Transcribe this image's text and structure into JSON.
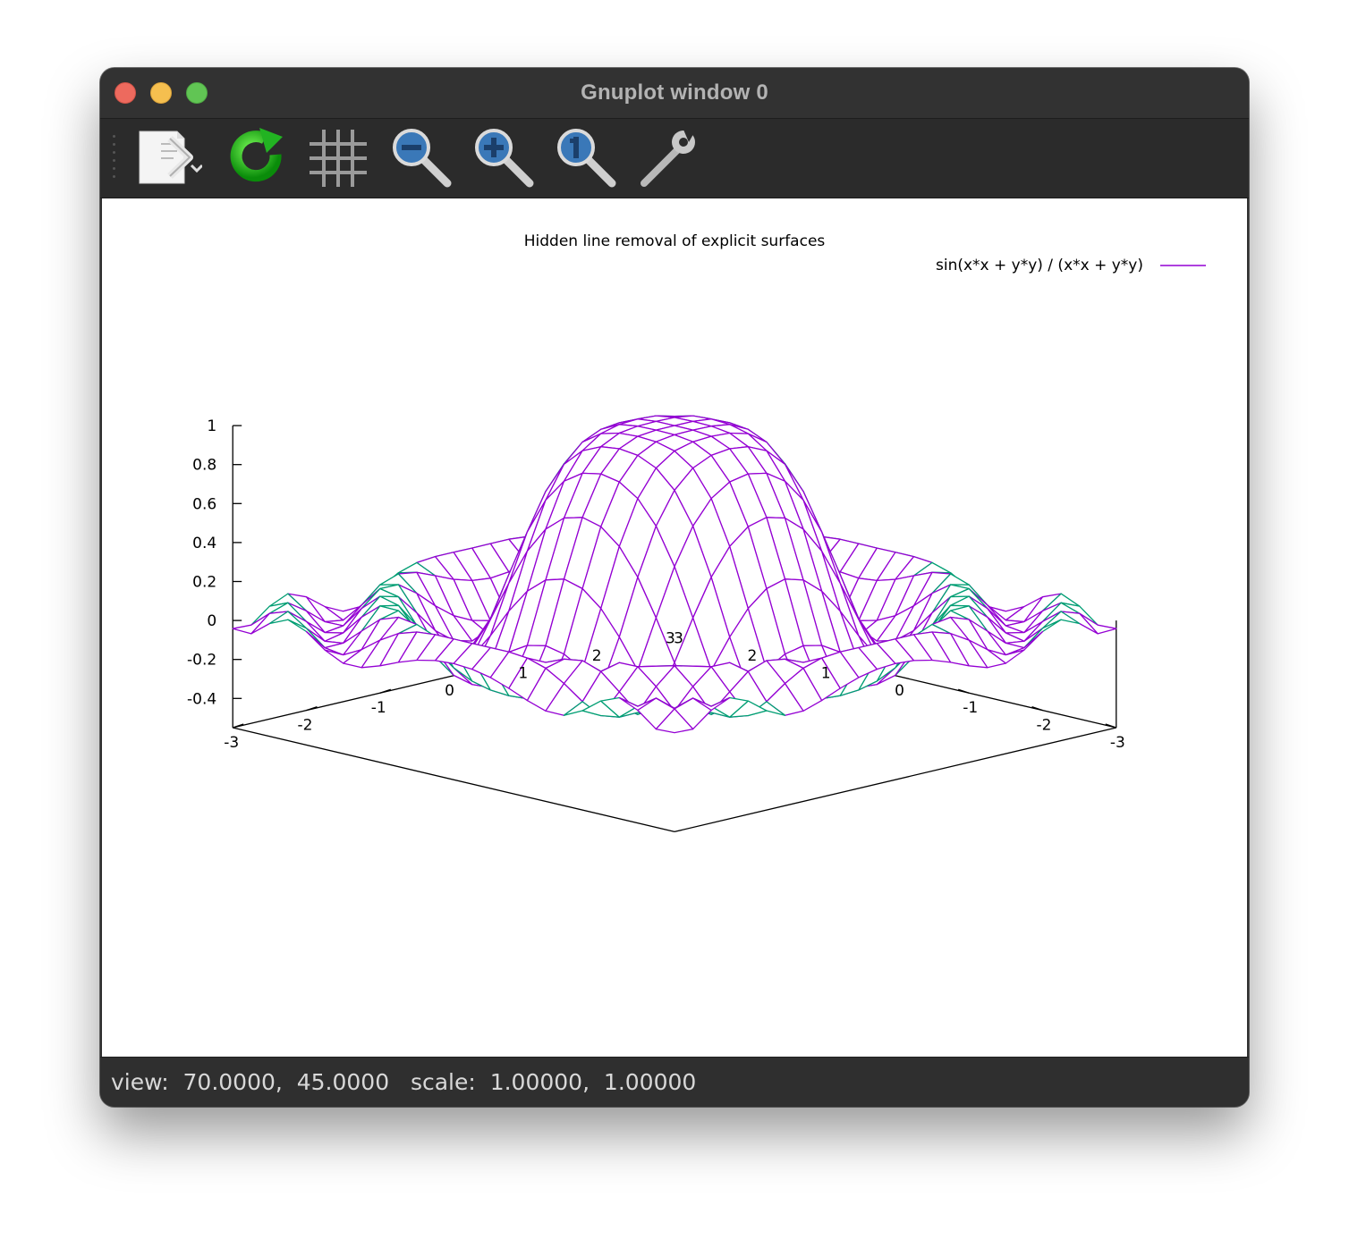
{
  "window": {
    "title": "Gnuplot window 0"
  },
  "toolbar": {
    "buttons": [
      {
        "name": "export",
        "icon": "export-document-icon"
      },
      {
        "name": "replot",
        "icon": "refresh-icon"
      },
      {
        "name": "grid",
        "icon": "grid-icon"
      },
      {
        "name": "zoom-previous",
        "icon": "zoom-out-icon"
      },
      {
        "name": "zoom-next",
        "icon": "zoom-in-icon"
      },
      {
        "name": "autoscale",
        "icon": "zoom-reset-icon"
      },
      {
        "name": "settings",
        "icon": "wrench-icon"
      }
    ]
  },
  "status": {
    "text": "view:  70.0000,  45.0000   scale:  1.00000,  1.00000"
  },
  "chart_data": {
    "type": "surface",
    "title": "Hidden line removal of explicit surfaces",
    "legend": {
      "entries": [
        "sin(x*x + y*y) / (x*x + y*y)"
      ],
      "placement": "top-right"
    },
    "function": "sin(x*x + y*y) / (x*x + y*y)",
    "x_range": [
      -3,
      3
    ],
    "y_range": [
      -3,
      3
    ],
    "z_range": [
      -0.4,
      1
    ],
    "z_ticks": [
      "1",
      "0.8",
      "0.6",
      "0.4",
      "0.2",
      "0",
      "-0.2",
      "-0.4"
    ],
    "x_ticks": [
      "-3",
      "-2",
      "-1",
      "0",
      "1",
      "2",
      "3"
    ],
    "y_ticks": [
      "-3",
      "-2",
      "-1",
      "0",
      "1",
      "2",
      "3"
    ],
    "view": {
      "rot_x": 70,
      "rot_z": 45,
      "scale": 1,
      "scale_z": 1
    },
    "samples": 25,
    "hidden3d": true,
    "colors": {
      "top": "#9400d3",
      "bottom": "#009e73"
    },
    "grid": false
  }
}
